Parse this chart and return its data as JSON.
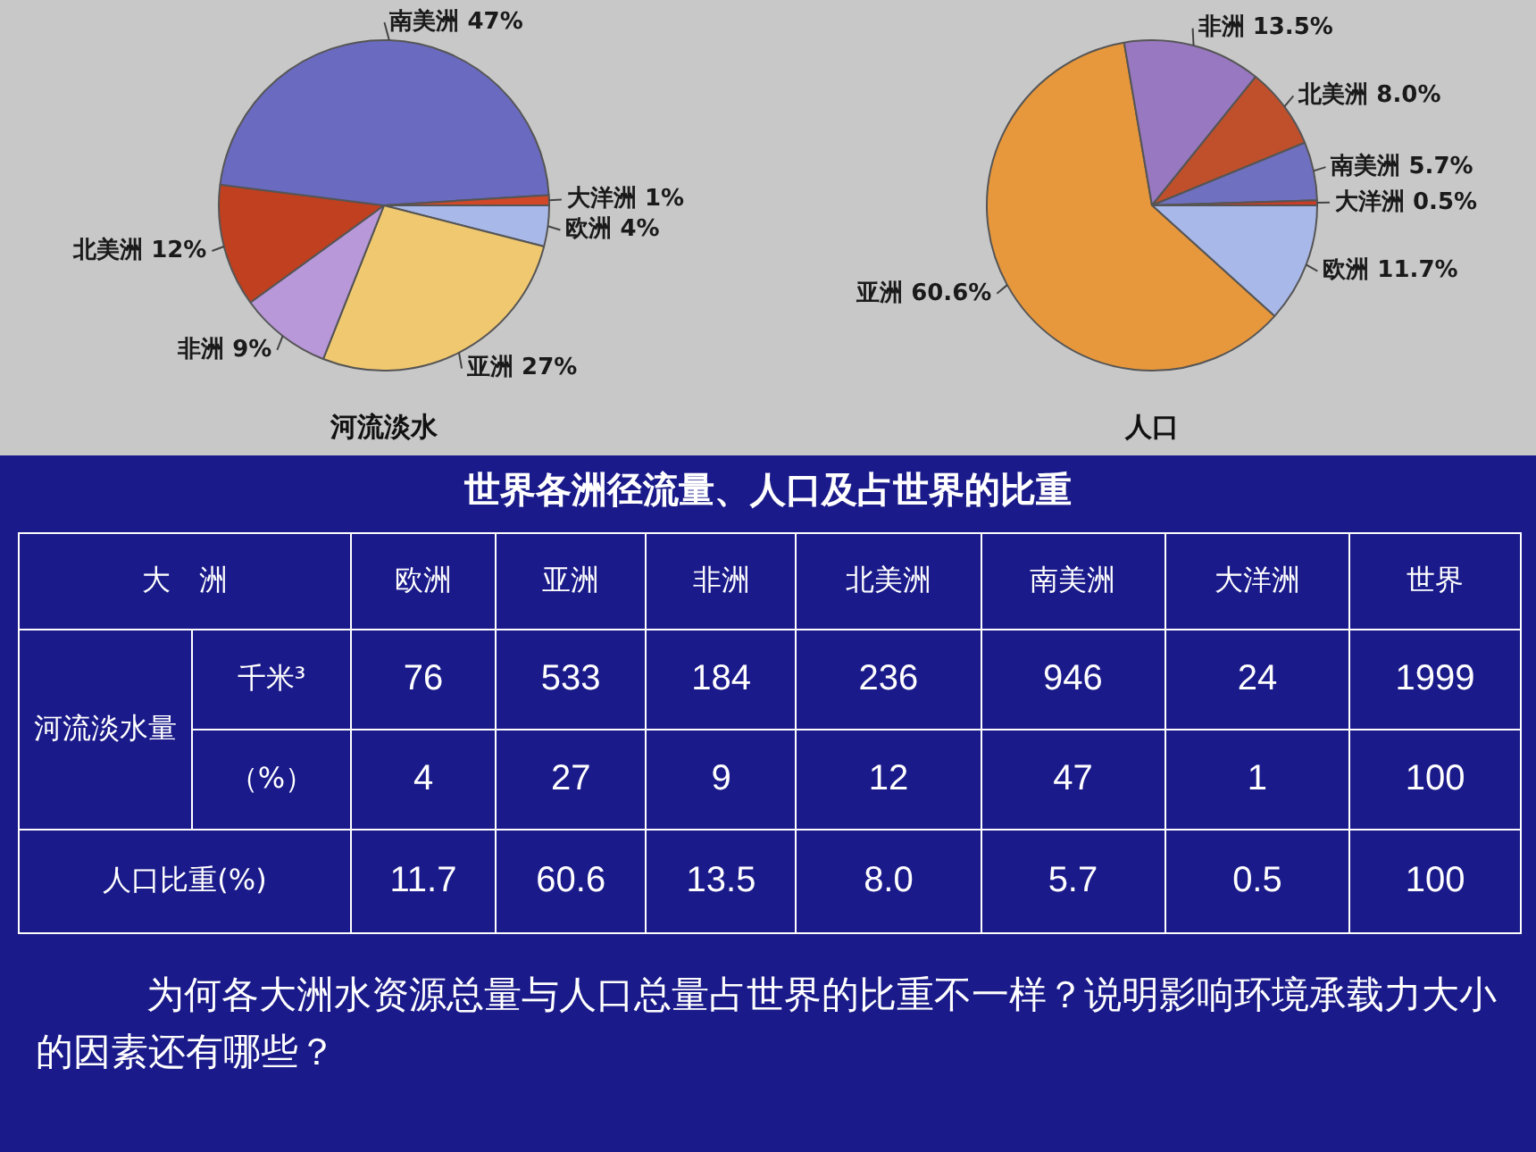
{
  "chart_data": [
    {
      "type": "pie",
      "title": "河流淡水",
      "categories": [
        "欧洲",
        "亚洲",
        "非洲",
        "北美洲",
        "南美洲",
        "大洋洲"
      ],
      "values": [
        4,
        27,
        9,
        12,
        47,
        1
      ],
      "value_labels": [
        "4%",
        "27%",
        "9%",
        "12%",
        "47%",
        "1%"
      ],
      "colors": [
        "#a8b8e8",
        "#f0c870",
        "#b898d8",
        "#c04020",
        "#6a6ac0",
        "#d04828"
      ],
      "legend": false
    },
    {
      "type": "pie",
      "title": "人口",
      "categories": [
        "欧洲",
        "亚洲",
        "非洲",
        "北美洲",
        "南美洲",
        "大洋洲"
      ],
      "values": [
        11.7,
        60.6,
        13.5,
        8.0,
        5.7,
        0.5
      ],
      "value_labels": [
        "11.7%",
        "60.6%",
        "13.5%",
        "8.0%",
        "5.7%",
        "0.5%"
      ],
      "colors": [
        "#a8b8e8",
        "#e8983c",
        "#9878c0",
        "#c0502c",
        "#7070c0",
        "#c83c28"
      ],
      "legend": false
    },
    {
      "type": "other",
      "title": "世界各洲径流量、人口及占世界的比重",
      "annotations": [
        "大　洲",
        "欧洲",
        "亚洲",
        "非洲",
        "北美洲",
        "南美洲",
        "大洋洲",
        "世界",
        "河流淡水量",
        "千米³",
        "76",
        "533",
        "184",
        "236",
        "946",
        "24",
        "1999",
        "（%）",
        "4",
        "27",
        "9",
        "12",
        "47",
        "1",
        "100",
        "人口比重(%)",
        "11.7",
        "60.6",
        "13.5",
        "8.0",
        "5.7",
        "0.5",
        "100",
        "为何各大洲水资源总量与人口总量占世界的比重不一样？说明影响环境承载力大小的因素还有哪些？"
      ]
    }
  ]
}
